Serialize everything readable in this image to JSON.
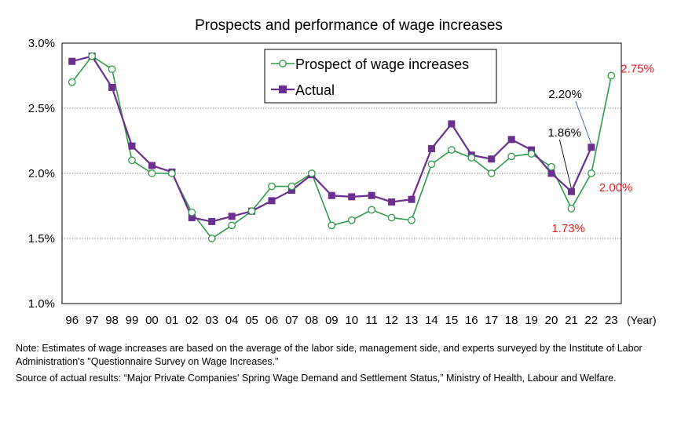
{
  "chart_data": {
    "type": "line",
    "title": "Prospects and performance of wage increases",
    "xunit": "(Year)",
    "categories": [
      "96",
      "97",
      "98",
      "99",
      "00",
      "01",
      "02",
      "03",
      "04",
      "05",
      "06",
      "07",
      "08",
      "09",
      "10",
      "11",
      "12",
      "13",
      "14",
      "15",
      "16",
      "17",
      "18",
      "19",
      "20",
      "21",
      "22",
      "23"
    ],
    "ylim": [
      1.0,
      3.0
    ],
    "yticks": [
      "1.0%",
      "1.5%",
      "2.0%",
      "2.5%",
      "3.0%"
    ],
    "grid": "horizontal dotted",
    "legend_position": "top-right",
    "series": [
      {
        "name": "Prospect of wage increases",
        "color": "#2e9a4a",
        "marker": "open-circle",
        "values": [
          2.7,
          2.9,
          2.8,
          2.1,
          2.0,
          2.0,
          1.7,
          1.5,
          1.6,
          1.71,
          1.9,
          1.9,
          2.0,
          1.6,
          1.64,
          1.72,
          1.66,
          1.64,
          2.07,
          2.18,
          2.12,
          2.0,
          2.13,
          2.15,
          2.05,
          1.73,
          2.0,
          2.75
        ]
      },
      {
        "name": "Actual",
        "color": "#6b2f8f",
        "marker": "filled-square",
        "values": [
          2.86,
          2.9,
          2.66,
          2.21,
          2.06,
          2.01,
          1.66,
          1.63,
          1.67,
          1.71,
          1.79,
          1.87,
          1.99,
          1.83,
          1.82,
          1.83,
          1.78,
          1.8,
          2.19,
          2.38,
          2.14,
          2.11,
          2.26,
          2.18,
          2.0,
          1.86,
          2.2,
          null
        ]
      }
    ],
    "annotations": [
      {
        "text": "2.75%",
        "color": "#e02020",
        "series": 0,
        "index": 27
      },
      {
        "text": "2.20%",
        "color": "#000000",
        "series": 1,
        "index": 26
      },
      {
        "text": "1.86%",
        "color": "#000000",
        "series": 1,
        "index": 25
      },
      {
        "text": "2.00%",
        "color": "#e02020",
        "series": 0,
        "index": 26
      },
      {
        "text": "1.73%",
        "color": "#e02020",
        "series": 0,
        "index": 25
      }
    ]
  },
  "notes": {
    "note": "Note: Estimates of wage increases are based on the average of the labor side, management side, and experts surveyed by the Institute of Labor Administration's \"Questionnaire Survey on Wage Increases.\"",
    "source": "Source of actual results: “Major Private Companies' Spring Wage Demand and Settlement Status,” Ministry of Health, Labour and Welfare."
  }
}
